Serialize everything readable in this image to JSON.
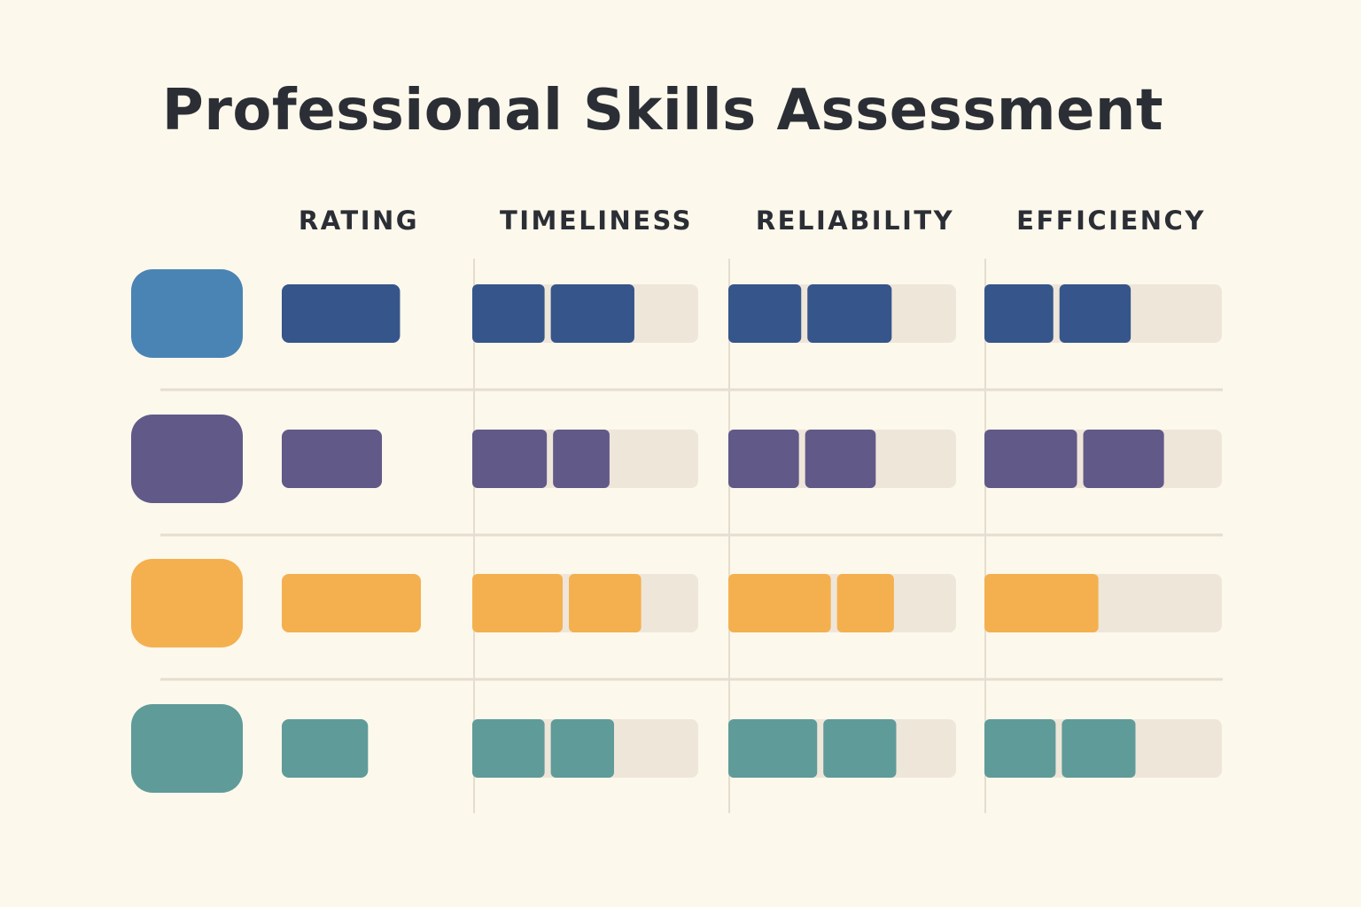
{
  "chart_data": {
    "type": "table",
    "title": "Professional Skills Assessment",
    "columns": [
      "RATING",
      "TIMELINESS",
      "RELIABILITY",
      "EFFICIENCY"
    ],
    "rating_max": 1.0,
    "segments_max": 3,
    "rows": [
      {
        "color": "#4a84b4",
        "bar_color": "#36558a",
        "rating": 0.85,
        "timeliness": [
          0.32,
          0.37
        ],
        "reliability": [
          0.32,
          0.37
        ],
        "efficiency": [
          0.29,
          0.3
        ]
      },
      {
        "color": "#615987",
        "bar_color": "#615987",
        "rating": 0.72,
        "timeliness": [
          0.33,
          0.25
        ],
        "reliability": [
          0.31,
          0.31
        ],
        "efficiency": [
          0.39,
          0.34
        ]
      },
      {
        "color": "#f4b04f",
        "bar_color": "#f4b04f",
        "rating": 1.0,
        "timeliness": [
          0.4,
          0.32
        ],
        "reliability": [
          0.45,
          0.25
        ],
        "efficiency": [
          0.48
        ]
      },
      {
        "color": "#5f9b99",
        "bar_color": "#5f9b99",
        "rating": 0.62,
        "timeliness": [
          0.32,
          0.28
        ],
        "reliability": [
          0.39,
          0.32
        ],
        "efficiency": [
          0.3,
          0.31
        ]
      }
    ]
  },
  "colors": {
    "background": "#fcf8ec",
    "track": "#efe6da",
    "gridline": "#e6ddcf",
    "text": "#2b2e35"
  }
}
